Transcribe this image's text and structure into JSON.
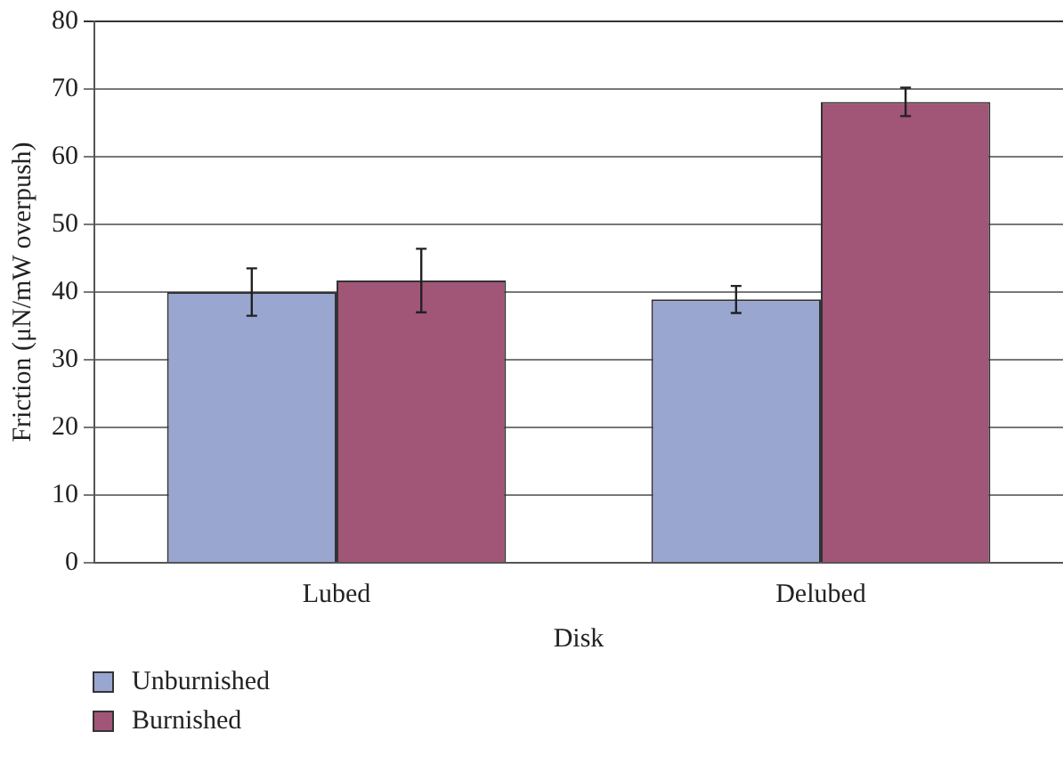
{
  "chart_data": {
    "type": "bar",
    "xlabel": "Disk",
    "ylabel": "Friction (μN/mW overpush)",
    "categories": [
      "Lubed",
      "Delubed"
    ],
    "series": [
      {
        "name": "Unburnished",
        "color": "#99a6d0",
        "values": [
          40,
          38.9
        ],
        "errors": [
          3.5,
          2
        ]
      },
      {
        "name": "Burnished",
        "color": "#a15577",
        "values": [
          41.7,
          68.1
        ],
        "errors": [
          4.7,
          2.1
        ]
      }
    ],
    "ylim": [
      0,
      80
    ],
    "yticks": [
      0,
      10,
      20,
      30,
      40,
      50,
      60,
      70,
      80
    ],
    "grid": "y",
    "legend": "bottom left"
  }
}
